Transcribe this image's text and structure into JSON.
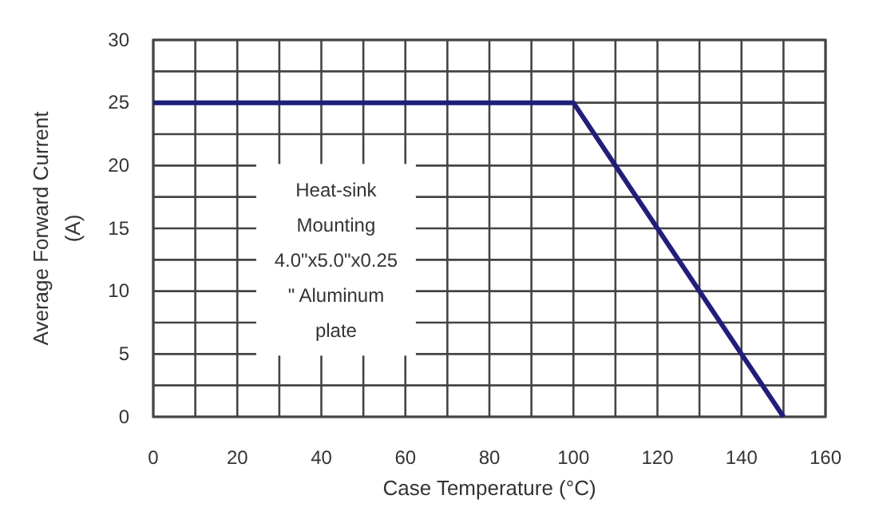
{
  "chart_data": {
    "type": "line",
    "xlabel": "Case Temperature (°C)",
    "ylabel": "Average Forward Current\n(A)",
    "x": [
      0,
      100,
      150
    ],
    "series": [
      {
        "color": "#1f1f7a",
        "values": [
          25,
          25,
          0
        ]
      }
    ],
    "xlim": [
      0,
      160
    ],
    "xticks": [
      0,
      {
        "value": 10,
        "label": null
      },
      20,
      {
        "value": 30,
        "label": null
      },
      40,
      {
        "value": 50,
        "label": null
      },
      60,
      {
        "value": 70,
        "label": null
      },
      80,
      {
        "value": 90,
        "label": null
      },
      100,
      {
        "value": 110,
        "label": null
      },
      120,
      {
        "value": 130,
        "label": null
      },
      140,
      {
        "value": 150,
        "label": null
      },
      160
    ],
    "ylim": [
      0,
      30
    ],
    "yticks": [
      0,
      {
        "value": 2.5,
        "label": null
      },
      5,
      {
        "value": 7.5,
        "label": null
      },
      10,
      {
        "value": 12.5,
        "label": null
      },
      15,
      {
        "value": 17.5,
        "label": null
      },
      20,
      {
        "value": 22.5,
        "label": null
      },
      25,
      {
        "value": 27.5,
        "label": null
      },
      30
    ],
    "grid": true,
    "marker": "none",
    "line_style": "solid",
    "annotations": [
      "Heat-sink\nMounting\n4.0\"x5.0\"x0.25\n\" Aluminum\nplate"
    ]
  }
}
